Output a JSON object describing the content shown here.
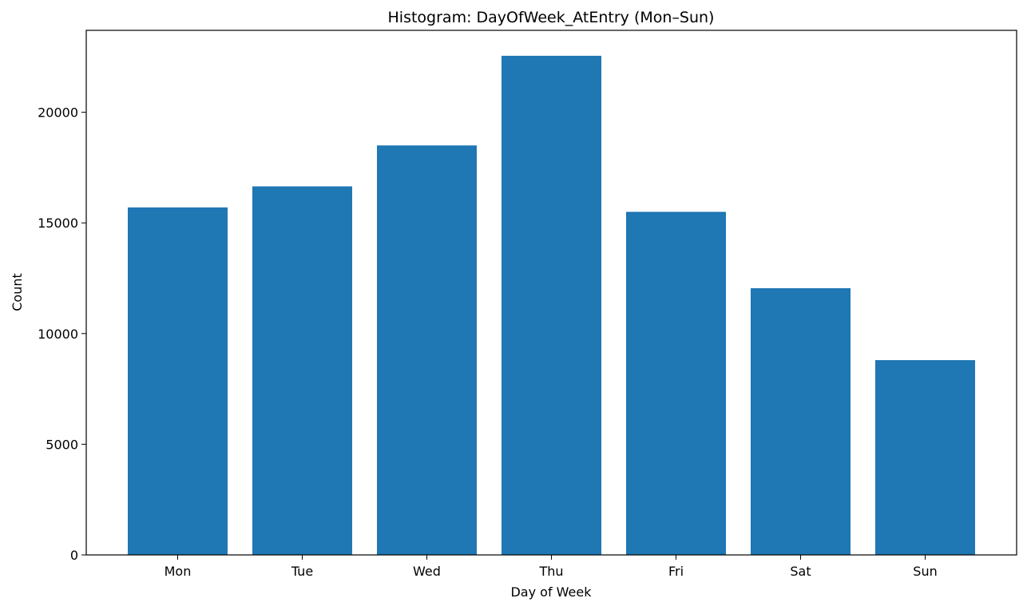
{
  "chart_data": {
    "type": "bar",
    "title": "Histogram: DayOfWeek_AtEntry (Mon–Sun)",
    "xlabel": "Day of Week",
    "ylabel": "Count",
    "categories": [
      "Mon",
      "Tue",
      "Wed",
      "Thu",
      "Fri",
      "Sat",
      "Sun"
    ],
    "values": [
      15700,
      16650,
      18500,
      22550,
      15500,
      12050,
      8800
    ],
    "ylim": [
      0,
      23700
    ],
    "yticks": [
      0,
      5000,
      10000,
      15000,
      20000
    ],
    "grid": false,
    "bar_color": "#1f77b4"
  }
}
